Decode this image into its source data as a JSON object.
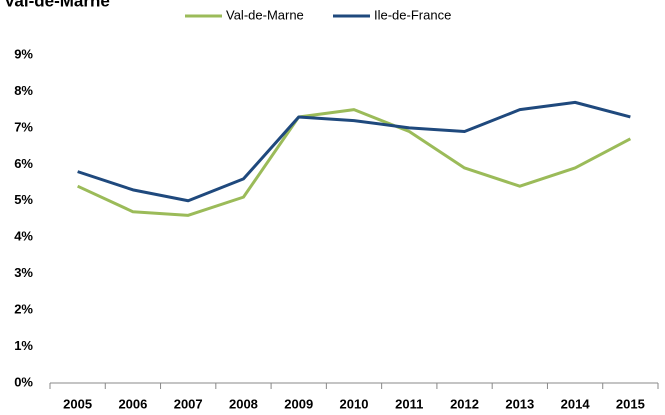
{
  "chart_data": {
    "type": "line",
    "title": "Val-de-Marne",
    "categories": [
      "2005",
      "2006",
      "2007",
      "2008",
      "2009",
      "2010",
      "2011",
      "2012",
      "2013",
      "2014",
      "2015"
    ],
    "series": [
      {
        "name": "Val-de-Marne",
        "color": "#9bbb59",
        "values": [
          5.4,
          4.7,
          4.6,
          5.1,
          7.3,
          7.5,
          6.9,
          5.9,
          5.4,
          5.9,
          6.7
        ]
      },
      {
        "name": "Ile-de-France",
        "color": "#1f497d",
        "values": [
          5.8,
          5.3,
          5.0,
          5.6,
          7.3,
          7.2,
          7.0,
          6.9,
          7.5,
          7.7,
          7.3
        ]
      }
    ],
    "ylim": [
      0,
      9
    ],
    "yticks": [
      {
        "value": 0,
        "label": "0%"
      },
      {
        "value": 1,
        "label": "1%"
      },
      {
        "value": 2,
        "label": "2%"
      },
      {
        "value": 3,
        "label": "3%"
      },
      {
        "value": 4,
        "label": "4%"
      },
      {
        "value": 5,
        "label": "5%"
      },
      {
        "value": 6,
        "label": "6%"
      },
      {
        "value": 7,
        "label": "7%"
      },
      {
        "value": 8,
        "label": "8%"
      },
      {
        "value": 9,
        "label": "9%"
      }
    ],
    "grid": false,
    "legend": "top"
  }
}
